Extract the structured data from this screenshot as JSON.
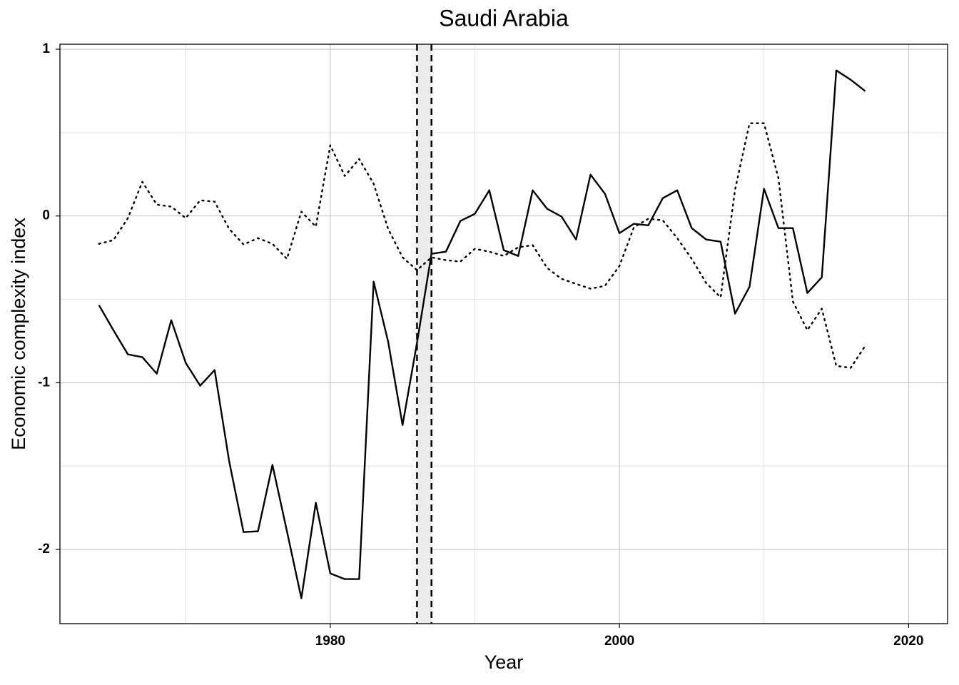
{
  "chart_data": {
    "type": "line",
    "title": "Saudi Arabia",
    "xlabel": "Year",
    "ylabel": "Economic complexity index",
    "x": [
      1964,
      1965,
      1966,
      1967,
      1968,
      1969,
      1970,
      1971,
      1972,
      1973,
      1974,
      1975,
      1976,
      1977,
      1978,
      1979,
      1980,
      1981,
      1982,
      1983,
      1984,
      1985,
      1986,
      1987,
      1988,
      1989,
      1990,
      1991,
      1992,
      1993,
      1994,
      1995,
      1996,
      1997,
      1998,
      1999,
      2000,
      2001,
      2002,
      2003,
      2004,
      2005,
      2006,
      2007,
      2008,
      2009,
      2010,
      2011,
      2012,
      2013,
      2014,
      2015,
      2016,
      2017
    ],
    "series": [
      {
        "color": "#000000",
        "dash": "solid",
        "values": [
          -0.535,
          -0.685,
          -0.83,
          -0.847,
          -0.946,
          -0.625,
          -0.881,
          -1.018,
          -0.924,
          -1.468,
          -1.896,
          -1.891,
          -1.493,
          -1.89,
          -2.293,
          -1.72,
          -2.144,
          -2.178,
          -2.178,
          -0.394,
          -0.753,
          -1.254,
          -0.76,
          -0.227,
          -0.214,
          -0.03,
          0.013,
          0.154,
          -0.205,
          -0.24,
          0.154,
          0.043,
          -0.004,
          -0.141,
          0.248,
          0.133,
          -0.103,
          -0.047,
          -0.056,
          0.107,
          0.154,
          -0.073,
          -0.141,
          -0.154,
          -0.586,
          -0.424,
          0.163,
          -0.073,
          -0.073,
          -0.462,
          -0.368,
          0.873,
          0.817,
          0.749
        ]
      },
      {
        "color": "#000000",
        "dash": "dotted",
        "values": [
          -0.167,
          -0.145,
          -0.013,
          0.205,
          0.068,
          0.056,
          -0.013,
          0.094,
          0.086,
          -0.077,
          -0.171,
          -0.133,
          -0.167,
          -0.257,
          0.026,
          -0.064,
          0.424,
          0.24,
          0.342,
          0.193,
          -0.077,
          -0.248,
          -0.325,
          -0.248,
          -0.265,
          -0.274,
          -0.197,
          -0.214,
          -0.24,
          -0.188,
          -0.175,
          -0.312,
          -0.377,
          -0.407,
          -0.436,
          -0.419,
          -0.3,
          -0.068,
          -0.017,
          -0.026,
          -0.133,
          -0.257,
          -0.402,
          -0.488,
          0.158,
          0.556,
          0.556,
          0.227,
          -0.513,
          -0.685,
          -0.556,
          -0.899,
          -0.911,
          -0.779
        ]
      }
    ],
    "shade": [
      1986,
      1987
    ],
    "xlim": [
      1961.3,
      2022.7
    ],
    "xticks": [
      1980,
      2000,
      2020
    ],
    "xminorticks": [
      1970,
      1990,
      2010
    ],
    "ylim": [
      -2.445,
      1.03
    ],
    "yticks": [
      1,
      0,
      -1,
      -2
    ],
    "yminorticks": [
      0.5,
      -0.5,
      -1.5
    ],
    "grid": true
  }
}
